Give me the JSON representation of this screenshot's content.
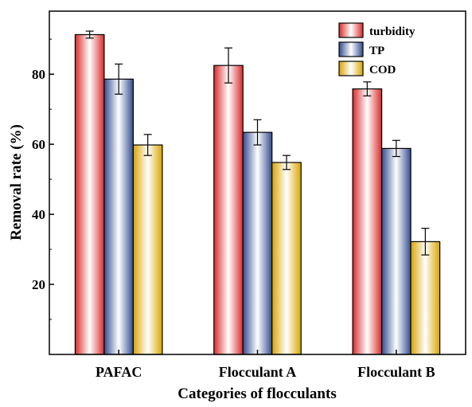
{
  "chart_data": {
    "type": "bar",
    "xlabel": "Categories of flocculants",
    "ylabel": "Removal rate (%)",
    "ylim": [
      0,
      98
    ],
    "yticks": [
      20,
      40,
      60,
      80
    ],
    "categories": [
      "PAFAC",
      "Flocculant A",
      "Flocculant B"
    ],
    "series": [
      {
        "name": "turbidity",
        "values": [
          91.3,
          82.5,
          75.8
        ],
        "errors": [
          1.0,
          5.0,
          2.0
        ],
        "color": "#ff3333"
      },
      {
        "name": "TP",
        "values": [
          78.6,
          63.4,
          58.8
        ],
        "errors": [
          4.3,
          3.6,
          2.3
        ],
        "color": "#3b5aa8"
      },
      {
        "name": "COD",
        "values": [
          59.8,
          54.8,
          32.2
        ],
        "errors": [
          3.0,
          2.0,
          3.8
        ],
        "color": "#ffc200"
      }
    ],
    "legend_position": "top-right",
    "grid": false
  }
}
